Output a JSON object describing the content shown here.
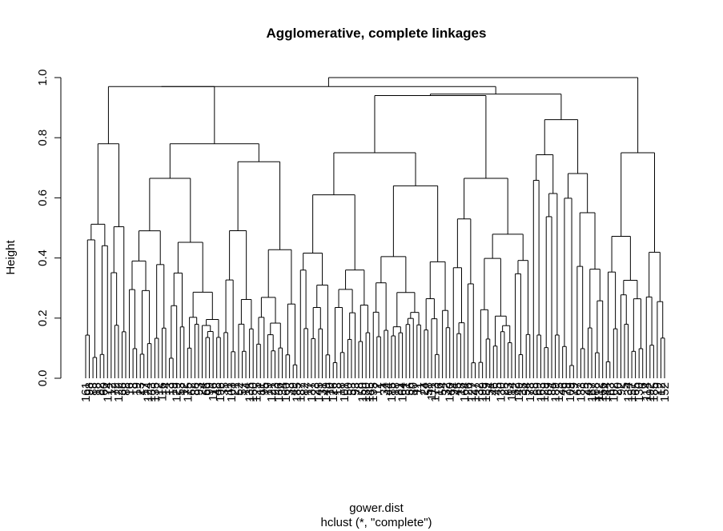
{
  "chart_data": {
    "type": "dendrogram",
    "title": "Agglomerative, complete linkages",
    "ylabel": "Height",
    "xlabel": "gower.dist",
    "sublabel": "hclust (*, \"complete\")",
    "ylim": [
      0,
      1.0
    ],
    "yticks": [
      "0.0",
      "0.2",
      "0.4",
      "0.6",
      "0.8",
      "1.0"
    ],
    "ytick_values": [
      0,
      0.2,
      0.4,
      0.6,
      0.8,
      1.0
    ],
    "merge_heights": {
      "root": 1.0,
      "left_cluster": 0.97,
      "right_cluster": 0.97,
      "big_middle": 0.945,
      "mid_right": 0.945,
      "left_left": 0.78,
      "left_center": 0.78,
      "mid_center": 0.75,
      "right_a": 0.86,
      "right_b": 0.75,
      "right_c": 0.72,
      "sub_065": 0.665,
      "sub_060": 0.61,
      "sub_0585": 0.585
    },
    "leaves": [
      "161",
      "98",
      "88",
      "18",
      "82",
      "60",
      "174",
      "12",
      "72",
      "122",
      "38",
      "88",
      "16",
      "8",
      "19",
      "23",
      "17",
      "124",
      "133",
      "135",
      "12",
      "116",
      "14",
      "13",
      "19",
      "129",
      "53",
      "12",
      "175",
      "62",
      "88",
      "93",
      "24",
      "66",
      "99",
      "116",
      "48",
      "196",
      "35",
      "11",
      "103",
      "21",
      "52",
      "57",
      "14",
      "135",
      "150",
      "125",
      "11",
      "95",
      "19",
      "121",
      "23",
      "136",
      "34",
      "160",
      "33",
      "49",
      "185",
      "187",
      "82",
      "17",
      "137",
      "23",
      "145",
      "31",
      "149",
      "10",
      "126",
      "18",
      "18",
      "101",
      "50",
      "53",
      "93",
      "78",
      "150",
      "180",
      "145",
      "195",
      "12",
      "1",
      "34",
      "44",
      "185",
      "18",
      "81",
      "164",
      "31",
      "56",
      "80",
      "11",
      "71",
      "24",
      "58",
      "111",
      "173",
      "16",
      "54",
      "32",
      "140",
      "94",
      "45",
      "18",
      "164",
      "26",
      "127",
      "147",
      "32",
      "199",
      "189",
      "54",
      "46",
      "45",
      "130",
      "25",
      "83",
      "114",
      "82",
      "149",
      "38",
      "54",
      "178",
      "88",
      "69",
      "163",
      "129",
      "89",
      "84",
      "189",
      "125",
      "46",
      "79",
      "109",
      "79",
      "67",
      "133",
      "25",
      "43",
      "167",
      "168",
      "112",
      "166",
      "144",
      "63",
      "102",
      "20",
      "92",
      "5",
      "134",
      "157",
      "65",
      "130",
      "6",
      "114",
      "192",
      "185",
      "29",
      "12",
      "152"
    ]
  }
}
